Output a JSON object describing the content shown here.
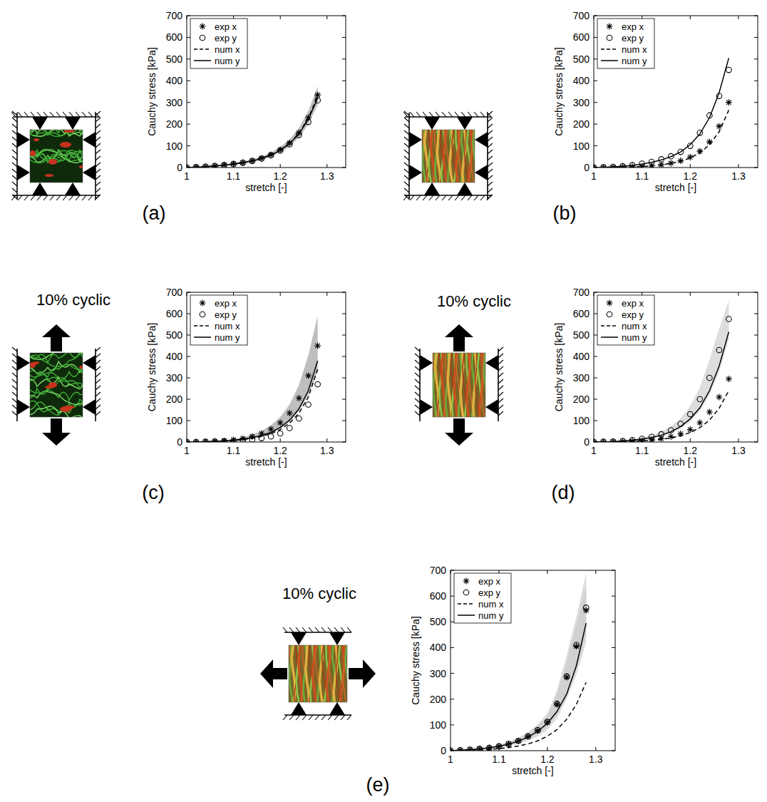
{
  "chart_data": [
    {
      "type": "line",
      "label": "(a)",
      "xlabel": "stretch [-]",
      "ylabel": "Cauchy stress [kPa]",
      "x": [
        1,
        1.02,
        1.04,
        1.06,
        1.08,
        1.1,
        1.12,
        1.14,
        1.16,
        1.18,
        1.2,
        1.22,
        1.24,
        1.26,
        1.28
      ],
      "xlim": [
        1,
        1.34
      ],
      "ylim": [
        0,
        700
      ],
      "xticks": [
        1,
        1.1,
        1.2,
        1.3
      ],
      "yticks": [
        0,
        100,
        200,
        300,
        400,
        500,
        600,
        700
      ],
      "grid": false,
      "legend": "upper left",
      "series": [
        {
          "name": "exp x",
          "type": "scatter",
          "marker": "asterisk",
          "line_style": "none",
          "color": "#000000",
          "values": [
            0,
            2,
            4,
            7,
            12,
            17,
            23,
            31,
            43,
            59,
            82,
            113,
            160,
            230,
            335
          ],
          "lower": [
            0,
            1,
            3,
            5,
            9,
            13,
            18,
            25,
            35,
            49,
            69,
            96,
            137,
            199,
            290
          ],
          "upper": [
            0,
            3,
            5,
            9,
            15,
            21,
            28,
            38,
            51,
            69,
            95,
            130,
            183,
            261,
            375
          ]
        },
        {
          "name": "exp y",
          "type": "scatter",
          "marker": "circle",
          "line_style": "none",
          "color": "#000000",
          "values": [
            0,
            2,
            4,
            7,
            11,
            16,
            22,
            30,
            41,
            56,
            78,
            107,
            150,
            210,
            310
          ]
        },
        {
          "name": "num x",
          "type": "line",
          "marker": "none",
          "line_style": "dashed",
          "color": "#000000",
          "values": [
            0,
            2,
            4,
            7,
            11,
            16,
            22,
            30,
            42,
            58,
            80,
            112,
            158,
            228,
            330
          ]
        },
        {
          "name": "num y",
          "type": "line",
          "marker": "none",
          "line_style": "solid",
          "color": "#000000",
          "values": [
            0,
            2,
            4,
            7,
            11,
            16,
            22,
            30,
            42,
            57,
            79,
            110,
            155,
            222,
            320
          ]
        }
      ]
    },
    {
      "type": "line",
      "label": "(b)",
      "xlabel": "stretch [-]",
      "ylabel": "Cauchy stress [kPa]",
      "x": [
        1,
        1.02,
        1.04,
        1.06,
        1.08,
        1.1,
        1.12,
        1.14,
        1.16,
        1.18,
        1.2,
        1.22,
        1.24,
        1.26,
        1.28
      ],
      "xlim": [
        1,
        1.34
      ],
      "ylim": [
        0,
        700
      ],
      "xticks": [
        1,
        1.1,
        1.2,
        1.3
      ],
      "yticks": [
        0,
        100,
        200,
        300,
        400,
        500,
        600,
        700
      ],
      "grid": false,
      "legend": "upper left",
      "series": [
        {
          "name": "exp x",
          "type": "scatter",
          "marker": "asterisk",
          "line_style": "none",
          "color": "#000000",
          "values": [
            0,
            0,
            1,
            2,
            3,
            5,
            8,
            13,
            20,
            31,
            48,
            75,
            118,
            190,
            300
          ]
        },
        {
          "name": "exp y",
          "type": "scatter",
          "marker": "circle",
          "line_style": "none",
          "color": "#000000",
          "values": [
            0,
            1,
            3,
            6,
            11,
            18,
            26,
            38,
            52,
            72,
            100,
            160,
            240,
            330,
            450
          ]
        },
        {
          "name": "num x",
          "type": "line",
          "marker": "none",
          "line_style": "dashed",
          "color": "#000000",
          "values": [
            0,
            0,
            1,
            2,
            3,
            5,
            8,
            12,
            19,
            29,
            44,
            68,
            105,
            165,
            265
          ]
        },
        {
          "name": "num y",
          "type": "line",
          "marker": "none",
          "line_style": "solid",
          "color": "#000000",
          "values": [
            0,
            1,
            3,
            6,
            10,
            16,
            24,
            35,
            50,
            72,
            105,
            155,
            230,
            345,
            505
          ]
        }
      ]
    },
    {
      "type": "line",
      "label": "(c)",
      "annotation": "10% cyclic",
      "xlabel": "stretch [-]",
      "ylabel": "Cauchy stress [kPa]",
      "x": [
        1,
        1.02,
        1.04,
        1.06,
        1.08,
        1.1,
        1.12,
        1.14,
        1.16,
        1.18,
        1.2,
        1.22,
        1.24,
        1.26,
        1.28
      ],
      "xlim": [
        1,
        1.34
      ],
      "ylim": [
        0,
        700
      ],
      "xticks": [
        1,
        1.1,
        1.2,
        1.3
      ],
      "yticks": [
        0,
        100,
        200,
        300,
        400,
        500,
        600,
        700
      ],
      "grid": false,
      "legend": "upper left",
      "series": [
        {
          "name": "exp x",
          "type": "scatter",
          "marker": "asterisk",
          "line_style": "none",
          "color": "#000000",
          "values": [
            0,
            0,
            1,
            3,
            6,
            10,
            16,
            26,
            40,
            60,
            90,
            135,
            205,
            310,
            450
          ],
          "lower": [
            0,
            0,
            1,
            2,
            4,
            7,
            11,
            18,
            28,
            42,
            63,
            95,
            145,
            220,
            330
          ],
          "upper": [
            0,
            1,
            2,
            4,
            8,
            13,
            21,
            34,
            52,
            78,
            117,
            176,
            267,
            405,
            590
          ]
        },
        {
          "name": "exp y",
          "type": "scatter",
          "marker": "circle",
          "line_style": "none",
          "color": "#000000",
          "values": [
            0,
            0,
            1,
            2,
            3,
            5,
            8,
            12,
            18,
            26,
            40,
            65,
            110,
            175,
            270
          ]
        },
        {
          "name": "num x",
          "type": "line",
          "marker": "none",
          "line_style": "dashed",
          "color": "#000000",
          "values": [
            0,
            0,
            1,
            2,
            4,
            7,
            11,
            17,
            26,
            39,
            58,
            88,
            135,
            210,
            340
          ]
        },
        {
          "name": "num y",
          "type": "line",
          "marker": "none",
          "line_style": "solid",
          "color": "#000000",
          "values": [
            0,
            0,
            1,
            3,
            5,
            8,
            13,
            20,
            30,
            45,
            68,
            102,
            155,
            240,
            380
          ]
        }
      ]
    },
    {
      "type": "line",
      "label": "(d)",
      "annotation": "10% cyclic",
      "xlabel": "stretch [-]",
      "ylabel": "Cauchy stress [kPa]",
      "x": [
        1,
        1.02,
        1.04,
        1.06,
        1.08,
        1.1,
        1.12,
        1.14,
        1.16,
        1.18,
        1.2,
        1.22,
        1.24,
        1.26,
        1.28
      ],
      "xlim": [
        1,
        1.34
      ],
      "ylim": [
        0,
        700
      ],
      "xticks": [
        1,
        1.1,
        1.2,
        1.3
      ],
      "yticks": [
        0,
        100,
        200,
        300,
        400,
        500,
        600,
        700
      ],
      "grid": false,
      "legend": "upper left",
      "series": [
        {
          "name": "exp x",
          "type": "scatter",
          "marker": "asterisk",
          "line_style": "none",
          "color": "#000000",
          "values": [
            0,
            0,
            1,
            2,
            4,
            6,
            10,
            16,
            25,
            38,
            58,
            90,
            140,
            210,
            295
          ]
        },
        {
          "name": "exp y",
          "type": "scatter",
          "marker": "circle",
          "line_style": "none",
          "color": "#000000",
          "values": [
            0,
            1,
            2,
            5,
            9,
            15,
            24,
            36,
            55,
            85,
            130,
            200,
            300,
            430,
            575
          ],
          "lower": [
            0,
            0,
            1,
            3,
            6,
            10,
            17,
            26,
            40,
            62,
            95,
            145,
            220,
            330,
            480
          ],
          "upper": [
            0,
            2,
            4,
            8,
            13,
            21,
            32,
            48,
            72,
            110,
            168,
            255,
            385,
            530,
            660
          ]
        },
        {
          "name": "num x",
          "type": "line",
          "marker": "none",
          "line_style": "dashed",
          "color": "#000000",
          "values": [
            0,
            0,
            1,
            2,
            3,
            5,
            8,
            12,
            19,
            29,
            44,
            67,
            102,
            158,
            240
          ]
        },
        {
          "name": "num y",
          "type": "line",
          "marker": "none",
          "line_style": "solid",
          "color": "#000000",
          "values": [
            0,
            1,
            2,
            4,
            8,
            13,
            21,
            32,
            48,
            72,
            108,
            160,
            240,
            355,
            515
          ]
        }
      ]
    },
    {
      "type": "line",
      "label": "(e)",
      "annotation": "10% cyclic",
      "xlabel": "stretch [-]",
      "ylabel": "Cauchy stress [kPa]",
      "x": [
        1,
        1.02,
        1.04,
        1.06,
        1.08,
        1.1,
        1.12,
        1.14,
        1.16,
        1.18,
        1.2,
        1.22,
        1.24,
        1.26,
        1.28
      ],
      "xlim": [
        1,
        1.34
      ],
      "ylim": [
        0,
        700
      ],
      "xticks": [
        1,
        1.1,
        1.2,
        1.3
      ],
      "yticks": [
        0,
        100,
        200,
        300,
        400,
        500,
        600,
        700
      ],
      "grid": false,
      "legend": "upper left",
      "series": [
        {
          "name": "exp x",
          "type": "scatter",
          "marker": "asterisk",
          "line_style": "none",
          "color": "#000000",
          "values": [
            0,
            2,
            4,
            7,
            11,
            17,
            26,
            38,
            55,
            78,
            110,
            180,
            285,
            405,
            545
          ],
          "lower": [
            0,
            1,
            3,
            5,
            8,
            13,
            20,
            30,
            44,
            63,
            90,
            140,
            220,
            320,
            450
          ],
          "upper": [
            0,
            3,
            5,
            9,
            14,
            21,
            32,
            47,
            67,
            95,
            135,
            220,
            345,
            490,
            640
          ]
        },
        {
          "name": "exp y",
          "type": "scatter",
          "marker": "circle",
          "line_style": "none",
          "color": "#000000",
          "values": [
            0,
            2,
            4,
            7,
            11,
            17,
            26,
            38,
            56,
            80,
            112,
            182,
            288,
            410,
            555
          ],
          "lower": [
            0,
            1,
            2,
            4,
            7,
            11,
            17,
            26,
            38,
            55,
            80,
            125,
            200,
            295,
            420
          ],
          "upper": [
            0,
            3,
            6,
            10,
            15,
            23,
            35,
            50,
            72,
            102,
            145,
            235,
            370,
            520,
            690
          ]
        },
        {
          "name": "num x",
          "type": "line",
          "marker": "none",
          "line_style": "dashed",
          "color": "#000000",
          "values": [
            0,
            1,
            2,
            3,
            5,
            8,
            12,
            18,
            26,
            38,
            56,
            82,
            122,
            180,
            265
          ]
        },
        {
          "name": "num y",
          "type": "line",
          "marker": "none",
          "line_style": "solid",
          "color": "#000000",
          "values": [
            0,
            2,
            4,
            7,
            11,
            17,
            25,
            37,
            53,
            75,
            106,
            152,
            220,
            330,
            495
          ]
        }
      ]
    }
  ]
}
